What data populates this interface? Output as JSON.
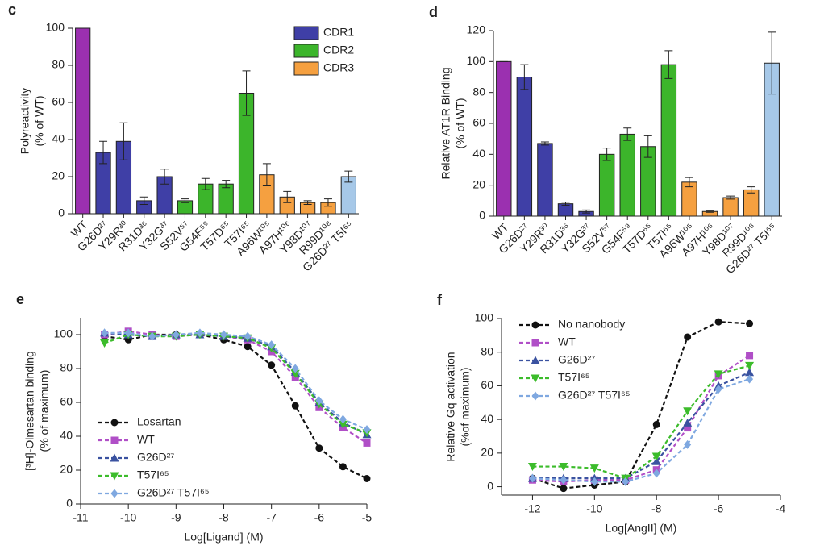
{
  "chart_data": [
    {
      "type": "bar",
      "panel": "c",
      "ylabel": [
        "Polyreactivity",
        "(% of WT)"
      ],
      "categories": [
        "WT",
        "G26D²⁷",
        "Y29R³⁰",
        "R31D³⁶",
        "Y32G³⁷",
        "S52V⁵⁷",
        "G54F⁵⁹",
        "T57D⁶⁵",
        "T57I⁶⁵",
        "A96W¹⁰⁵",
        "A97H¹⁰⁶",
        "Y98D¹⁰⁷",
        "R99D¹⁰⁸",
        "G26D²⁷ T5I⁶⁵"
      ],
      "values": [
        100,
        33,
        39,
        7,
        20,
        7,
        16,
        16,
        65,
        21,
        9,
        6,
        6,
        20
      ],
      "errors": [
        0,
        6,
        10,
        2,
        4,
        1,
        3,
        2,
        12,
        6,
        3,
        1,
        2,
        3
      ],
      "colors": [
        "#9b30b0",
        "#3f3fa6",
        "#3f3fa6",
        "#3f3fa6",
        "#3f3fa6",
        "#3cb52b",
        "#3cb52b",
        "#3cb52b",
        "#3cb52b",
        "#f5a040",
        "#f5a040",
        "#f5a040",
        "#f5a040",
        "#a6c8e8"
      ],
      "legend": [
        {
          "name": "CDR1",
          "color": "#3f3fa6"
        },
        {
          "name": "CDR2",
          "color": "#3cb52b"
        },
        {
          "name": "CDR3",
          "color": "#f5a040"
        }
      ],
      "ylim": [
        0,
        100
      ],
      "yticks": [
        0,
        20,
        40,
        60,
        80,
        100
      ]
    },
    {
      "type": "bar",
      "panel": "d",
      "ylabel": [
        "Relative AT1R Binding",
        "(% of WT)"
      ],
      "categories": [
        "WT",
        "G26D²⁷",
        "Y29R³⁰",
        "R31D³⁶",
        "Y32G³⁷",
        "S52V⁵⁷",
        "G54F⁵⁹",
        "T57D⁶⁵",
        "T57I⁶⁵",
        "A96W¹⁰⁵",
        "A97H¹⁰⁶",
        "Y98D¹⁰⁷",
        "R99D¹⁰⁸",
        "G26D²⁷ T5I⁶⁵"
      ],
      "values": [
        100,
        90,
        47,
        8,
        3,
        40,
        53,
        45,
        98,
        22,
        3,
        12,
        17,
        99
      ],
      "errors": [
        0,
        8,
        1,
        1,
        1,
        4,
        4,
        7,
        9,
        3,
        0.5,
        1,
        2,
        20
      ],
      "colors": [
        "#9b30b0",
        "#3f3fa6",
        "#3f3fa6",
        "#3f3fa6",
        "#3f3fa6",
        "#3cb52b",
        "#3cb52b",
        "#3cb52b",
        "#3cb52b",
        "#f5a040",
        "#f5a040",
        "#f5a040",
        "#f5a040",
        "#a6c8e8"
      ],
      "ylim": [
        0,
        120
      ],
      "yticks": [
        0,
        20,
        40,
        60,
        80,
        100,
        120
      ]
    },
    {
      "type": "line",
      "panel": "e",
      "xlabel": "Log[Ligand] (M)",
      "ylabel": [
        "[³H]-Olmesartan binding",
        "(% of maximum)"
      ],
      "x": [
        -10.5,
        -10,
        -9.5,
        -9,
        -8.5,
        -8,
        -7.5,
        -7,
        -6.5,
        -6,
        -5.5,
        -5
      ],
      "series": [
        {
          "name": "Losartan",
          "color": "#111111",
          "marker": "circle",
          "values": [
            99,
            97,
            100,
            100,
            100,
            97,
            93,
            82,
            58,
            33,
            22,
            15
          ]
        },
        {
          "name": "WT",
          "color": "#b04fc7",
          "marker": "square",
          "values": [
            100,
            102,
            100,
            99,
            100,
            99,
            97,
            90,
            75,
            57,
            45,
            36
          ]
        },
        {
          "name": "G26D²⁷",
          "color": "#3a52a0",
          "marker": "triangle",
          "values": [
            101,
            100,
            99,
            100,
            100,
            99,
            98,
            93,
            78,
            60,
            48,
            41
          ]
        },
        {
          "name": "T57I⁶⁵",
          "color": "#3cbc2b",
          "marker": "triangle-down",
          "values": [
            95,
            100,
            99,
            99,
            100,
            99,
            98,
            92,
            77,
            59,
            47,
            42
          ]
        },
        {
          "name": "G26D²⁷ T57I⁶⁵",
          "color": "#7fa8e0",
          "marker": "diamond",
          "values": [
            101,
            101,
            99,
            100,
            101,
            100,
            99,
            94,
            80,
            61,
            50,
            44
          ]
        }
      ],
      "xlim": [
        -11,
        -5
      ],
      "xticks": [
        -11,
        -10,
        -9,
        -8,
        -7,
        -6,
        -5
      ],
      "ylim": [
        0,
        110
      ],
      "yticks": [
        0,
        20,
        40,
        60,
        80,
        100
      ],
      "legend_position": "lower left"
    },
    {
      "type": "line",
      "panel": "f",
      "xlabel": "Log[AngII] (M)",
      "ylabel": [
        "Relative Gq activation",
        "(%of maximum)"
      ],
      "x": [
        -12,
        -11,
        -10,
        -9,
        -8,
        -7,
        -6,
        -5
      ],
      "series": [
        {
          "name": "No nanobody",
          "color": "#111111",
          "marker": "circle",
          "values": [
            5,
            -1,
            1,
            3,
            37,
            89,
            98,
            97
          ]
        },
        {
          "name": "WT",
          "color": "#b04fc7",
          "marker": "square",
          "values": [
            4,
            3,
            4,
            4,
            10,
            35,
            66,
            78
          ]
        },
        {
          "name": "G26D²⁷",
          "color": "#3a52a0",
          "marker": "triangle",
          "values": [
            5,
            5,
            5,
            5,
            15,
            38,
            60,
            68
          ]
        },
        {
          "name": "T57I⁶⁵",
          "color": "#3cbc2b",
          "marker": "triangle-down",
          "values": [
            12,
            12,
            11,
            5,
            18,
            45,
            67,
            72
          ]
        },
        {
          "name": "G26D²⁷ T57I⁶⁵",
          "color": "#7fa8e0",
          "marker": "diamond",
          "values": [
            5,
            4,
            3,
            3,
            8,
            25,
            58,
            64
          ]
        }
      ],
      "xlim": [
        -13,
        -4
      ],
      "xticks": [
        -12,
        -10,
        -8,
        -6,
        -4
      ],
      "ylim": [
        -5,
        100
      ],
      "yticks": [
        0,
        20,
        40,
        60,
        80,
        100
      ],
      "legend_position": "upper left"
    }
  ]
}
